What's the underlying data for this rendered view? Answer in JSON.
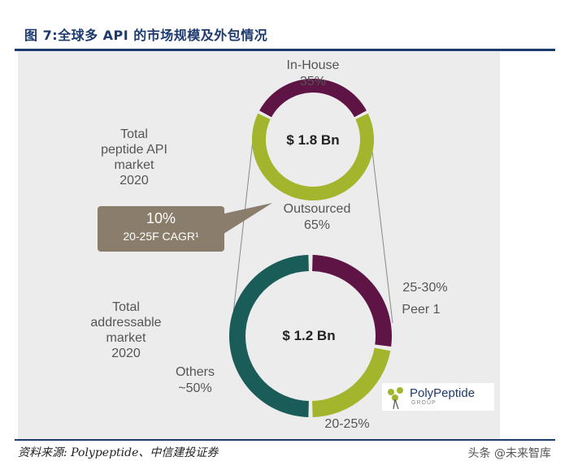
{
  "figure_title": "图 7:全球多 API 的市场规模及外包情况",
  "source": "资料来源: Polypeptide、中信建投证券",
  "watermark": "头条 @未来智库",
  "chart_data": [
    {
      "type": "pie",
      "title": "Total peptide API market 2020",
      "center_label": "$ 1.8 Bn",
      "slices": [
        {
          "label": "In-House",
          "value_text": "35%",
          "value": 35,
          "color": "#5e1444"
        },
        {
          "label": "Outsourced",
          "value_text": "65%",
          "value": 65,
          "color": "#a3b52c"
        }
      ]
    },
    {
      "type": "pie",
      "title": "Total addressable market 2020",
      "center_label": "$ 1.2 Bn",
      "slices": [
        {
          "label": "Peer 1",
          "value_text": "25-30%",
          "value": 27.5,
          "color": "#5e1444"
        },
        {
          "label": "",
          "value_text": "20-25%",
          "value": 22.5,
          "color": "#a3b52c"
        },
        {
          "label": "Others",
          "value_text": "~50%",
          "value": 50,
          "color": "#1a5c58"
        }
      ]
    }
  ],
  "callout": {
    "value": "10%",
    "label": "20-25F CAGR¹"
  },
  "labels": {
    "left_top": "Total\npeptide API\nmarket\n2020",
    "left_bottom": "Total\naddressable\nmarket\n2020",
    "inhouse_name": "In-House",
    "inhouse_pct": "35%",
    "outsourced_name": "Outsourced",
    "outsourced_pct": "65%",
    "peer_range": "25-30%",
    "peer_name": "Peer 1",
    "others_name": "Others",
    "others_pct": "~50%",
    "bottom_pct": "20-25%"
  },
  "logo": {
    "name": "PolyPeptide",
    "sub": "GROUP"
  }
}
